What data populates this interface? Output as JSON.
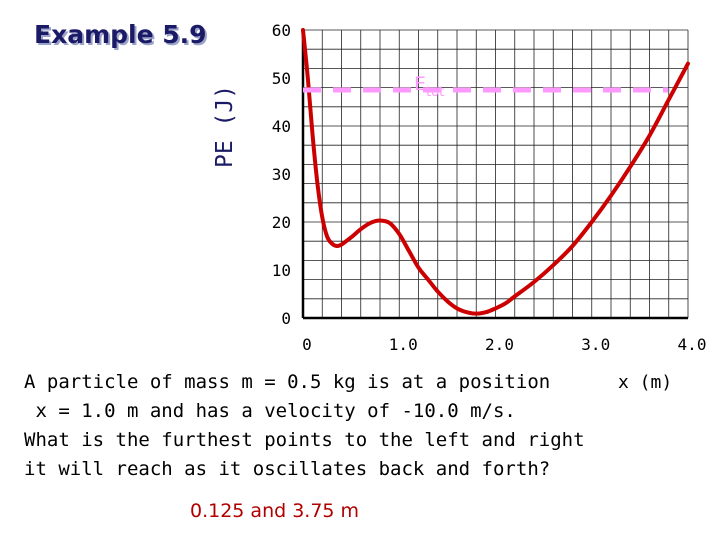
{
  "title": "Example 5.9",
  "ylabel": "PE (J)",
  "xlabel": "x (m)",
  "y_ticks": [
    "60",
    "50",
    "40",
    "30",
    "20",
    "10",
    "0"
  ],
  "x_ticks": [
    "0",
    "1.0",
    "2.0",
    "3.0",
    "4.0"
  ],
  "etot_label": "Etot",
  "problem_lines": [
    "A particle of mass m = 0.5 kg is at a position",
    " x = 1.0 m and has a velocity of -10.0 m/s.",
    "What is the furthest points to the left and right",
    "it will reach as it oscillates back and forth?"
  ],
  "answer": "0.125 and 3.75 m",
  "colors": {
    "curve": "#cc0000",
    "etot": "#ff99ff",
    "grid": "#222222",
    "title": "#1a1a66"
  },
  "chart_data": {
    "type": "line",
    "xlabel": "x (m)",
    "ylabel": "PE (J)",
    "xlim": [
      0,
      4.0
    ],
    "ylim": [
      0,
      60
    ],
    "grid": true,
    "series": [
      {
        "name": "PE",
        "x": [
          0.0,
          0.05,
          0.1,
          0.15,
          0.2,
          0.25,
          0.3,
          0.35,
          0.4,
          0.5,
          0.6,
          0.7,
          0.8,
          0.9,
          1.0,
          1.1,
          1.2,
          1.3,
          1.4,
          1.5,
          1.6,
          1.7,
          1.8,
          1.9,
          2.0,
          2.1,
          2.2,
          2.4,
          2.6,
          2.8,
          3.0,
          3.2,
          3.4,
          3.6,
          3.8,
          4.0
        ],
        "y": [
          60,
          50,
          38,
          28,
          21,
          17,
          15.5,
          15,
          15.3,
          16.8,
          18.5,
          19.8,
          20.3,
          19.8,
          17.5,
          14,
          10.5,
          8,
          5.5,
          3.5,
          2,
          1.2,
          0.9,
          1.2,
          2,
          3,
          4.5,
          7.5,
          11,
          15,
          20,
          25.5,
          31.5,
          38,
          45.5,
          53
        ]
      },
      {
        "name": "Etot",
        "x": [
          0,
          4.0
        ],
        "y": [
          47.5,
          47.5
        ]
      }
    ]
  }
}
